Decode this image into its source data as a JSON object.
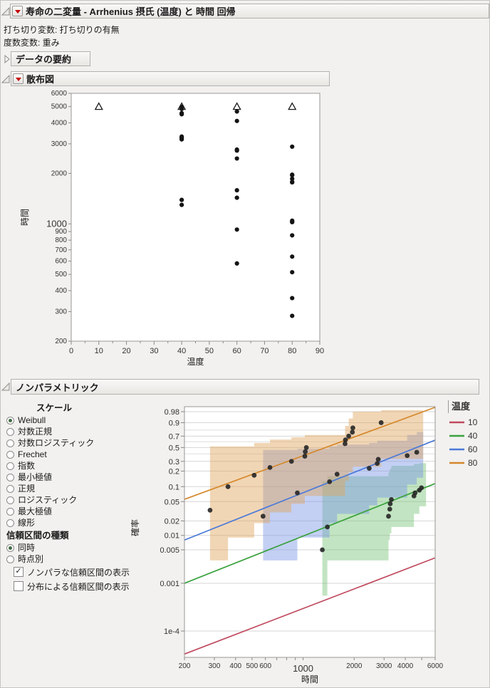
{
  "header": {
    "title": "寿命の二変量 - Arrhenius 摂氏 (温度) と 時間  回帰"
  },
  "info_lines": [
    "打ち切り変数: 打ち切りの有無",
    "度数変数: 重み"
  ],
  "sections": {
    "data_summary": {
      "title": "データの要約",
      "collapsed": true
    },
    "scatter": {
      "title": "散布図"
    },
    "nonparametric": {
      "title": "ノンパラメトリック"
    }
  },
  "controls": {
    "scale_label": "スケール",
    "scale_options": [
      {
        "label": "Weibull",
        "selected": true
      },
      {
        "label": "対数正規",
        "selected": false
      },
      {
        "label": "対数ロジスティック",
        "selected": false
      },
      {
        "label": "Frechet",
        "selected": false
      },
      {
        "label": "指数",
        "selected": false
      },
      {
        "label": "最小極値",
        "selected": false
      },
      {
        "label": "正規",
        "selected": false
      },
      {
        "label": "ロジスティック",
        "selected": false
      },
      {
        "label": "最大極値",
        "selected": false
      },
      {
        "label": "線形",
        "selected": false
      }
    ],
    "ci_label": "信頼区間の種類",
    "ci_options": [
      {
        "label": "同時",
        "selected": true
      },
      {
        "label": "時点別",
        "selected": false
      }
    ],
    "checkboxes": [
      {
        "label": "ノンパラな信頼区間の表示",
        "checked": true
      },
      {
        "label": "分布による信頼区間の表示",
        "checked": false
      }
    ]
  },
  "chart_data": [
    {
      "type": "scatter",
      "title": "散布図",
      "xlabel": "温度",
      "ylabel": "時間",
      "x_axis": {
        "min": 0,
        "max": 90,
        "tick_step": 10,
        "minor_step": 5
      },
      "y_axis": {
        "scale": "log",
        "min": 200,
        "max": 6000,
        "major_label": 1000,
        "ticks": [
          200,
          300,
          400,
          500,
          600,
          700,
          800,
          900,
          1000,
          2000,
          3000,
          4000,
          5000,
          6000
        ]
      },
      "censor_marker": "open-triangle",
      "point_color": "#141414",
      "series": [
        {
          "temp": 10,
          "censored_at": 5000,
          "failures": []
        },
        {
          "temp": 40,
          "censored_at": 5000,
          "failures": [
            1298,
            1390,
            3187,
            3241,
            3261,
            3313,
            4501,
            4568,
            4841,
            4982
          ]
        },
        {
          "temp": 60,
          "censored_at": 5000,
          "failures": [
            581,
            925,
            1432,
            1586,
            2452,
            2734,
            2772,
            4106,
            4674
          ]
        },
        {
          "temp": 80,
          "censored_at": 5000,
          "failures": [
            283,
            361,
            515,
            638,
            854,
            1024,
            1030,
            1045,
            1767,
            1777,
            1856,
            1951,
            1964,
            2884
          ]
        }
      ]
    },
    {
      "type": "line",
      "subtype": "weibull-probability-plot",
      "xlabel": "時間",
      "ylabel": "確率",
      "legend_title": "温度",
      "x_axis": {
        "scale": "log",
        "min": 200,
        "max": 6000,
        "ticks": [
          [
            200,
            "200"
          ],
          [
            300,
            "300"
          ],
          [
            400,
            "400"
          ],
          [
            500,
            "500"
          ],
          [
            600,
            "600"
          ],
          [
            700,
            ""
          ],
          [
            800,
            ""
          ],
          [
            900,
            ""
          ],
          [
            1000,
            "1000"
          ],
          [
            2000,
            "2000"
          ],
          [
            3000,
            "3000"
          ],
          [
            4000,
            "4000"
          ],
          [
            5000,
            ""
          ],
          [
            6000,
            "6000"
          ]
        ],
        "major_label": "1000"
      },
      "y_axis": {
        "scale": "weibull-probability",
        "ticks": [
          [
            0.98,
            "0.98"
          ],
          [
            0.9,
            "0.9"
          ],
          [
            0.7,
            "0.7"
          ],
          [
            0.5,
            "0.5"
          ],
          [
            0.3,
            "0.3"
          ],
          [
            0.2,
            "0.2"
          ],
          [
            0.1,
            "0.1"
          ],
          [
            0.05,
            "0.05"
          ],
          [
            0.02,
            "0.02"
          ],
          [
            0.01,
            "0.01"
          ],
          [
            0.005,
            "0.005"
          ],
          [
            0.001,
            "0.001"
          ],
          [
            0.0001,
            "1e-4"
          ]
        ],
        "minor_gridlines": [
          0.8,
          0.6,
          0.4
        ]
      },
      "series": [
        {
          "temp": "10",
          "color": "#c04a5e",
          "band_fill": null,
          "line": {
            "t": [
              200,
              6000
            ],
            "p": [
              3.3e-05,
              0.0034
            ]
          },
          "points": []
        },
        {
          "temp": "40",
          "color": "#3aa23e",
          "band_fill": "#77c377",
          "line": {
            "t": [
              200,
              6000
            ],
            "p": [
              0.001,
              0.115
            ]
          },
          "points": [
            [
              1298,
              0.005
            ],
            [
              1390,
              0.015
            ],
            [
              3187,
              0.025
            ],
            [
              3241,
              0.035
            ],
            [
              3261,
              0.045
            ],
            [
              3313,
              0.055
            ],
            [
              4501,
              0.065
            ],
            [
              4568,
              0.075
            ],
            [
              4841,
              0.085
            ],
            [
              4982,
              0.095
            ]
          ],
          "band": [
            [
              1298,
              0.00055,
              0.13
            ],
            [
              1390,
              0.003,
              0.16
            ],
            [
              3187,
              0.008,
              0.19
            ],
            [
              3241,
              0.011,
              0.22
            ],
            [
              3313,
              0.015,
              0.25
            ],
            [
              4501,
              0.028,
              0.27
            ],
            [
              4841,
              0.04,
              0.28
            ],
            [
              5300,
              0.04,
              0.28
            ]
          ]
        },
        {
          "temp": "60",
          "color": "#4a79d8",
          "band_fill": "#7b97e6",
          "line": {
            "t": [
              200,
              6000
            ],
            "p": [
              0.008,
              0.63
            ]
          },
          "points": [
            [
              581,
              0.025
            ],
            [
              925,
              0.075
            ],
            [
              1432,
              0.125
            ],
            [
              1586,
              0.175
            ],
            [
              2452,
              0.225
            ],
            [
              2734,
              0.275
            ],
            [
              2772,
              0.325
            ],
            [
              4106,
              0.375
            ],
            [
              4674,
              0.425
            ]
          ],
          "band": [
            [
              581,
              0.003,
              0.46
            ],
            [
              925,
              0.009,
              0.48
            ],
            [
              1432,
              0.018,
              0.52
            ],
            [
              1586,
              0.028,
              0.55
            ],
            [
              2452,
              0.042,
              0.58
            ],
            [
              2734,
              0.06,
              0.62
            ],
            [
              4106,
              0.11,
              0.72
            ],
            [
              4674,
              0.15,
              0.77
            ],
            [
              5100,
              0.15,
              0.77
            ]
          ]
        },
        {
          "temp": "80",
          "color": "#d5882c",
          "band_fill": "#dfa45a",
          "line": {
            "t": [
              200,
              6000
            ],
            "p": [
              0.0557,
              0.992
            ]
          },
          "points": [
            [
              283,
              0.0333
            ],
            [
              361,
              0.1
            ],
            [
              515,
              0.1667
            ],
            [
              638,
              0.2333
            ],
            [
              854,
              0.3
            ],
            [
              1024,
              0.3667
            ],
            [
              1030,
              0.4333
            ],
            [
              1045,
              0.5
            ],
            [
              1767,
              0.5667
            ],
            [
              1777,
              0.6333
            ],
            [
              1856,
              0.7
            ],
            [
              1951,
              0.7667
            ],
            [
              1964,
              0.8333
            ],
            [
              2884,
              0.9
            ]
          ],
          "band": [
            [
              283,
              0.003,
              0.52
            ],
            [
              361,
              0.009,
              0.52
            ],
            [
              515,
              0.018,
              0.58
            ],
            [
              638,
              0.03,
              0.64
            ],
            [
              854,
              0.045,
              0.68
            ],
            [
              1024,
              0.065,
              0.72
            ],
            [
              1767,
              0.13,
              0.86
            ],
            [
              1856,
              0.19,
              0.94
            ],
            [
              1964,
              0.24,
              0.98
            ],
            [
              2884,
              0.33,
              0.985
            ],
            [
              5100,
              0.33,
              0.985
            ]
          ]
        }
      ]
    }
  ]
}
